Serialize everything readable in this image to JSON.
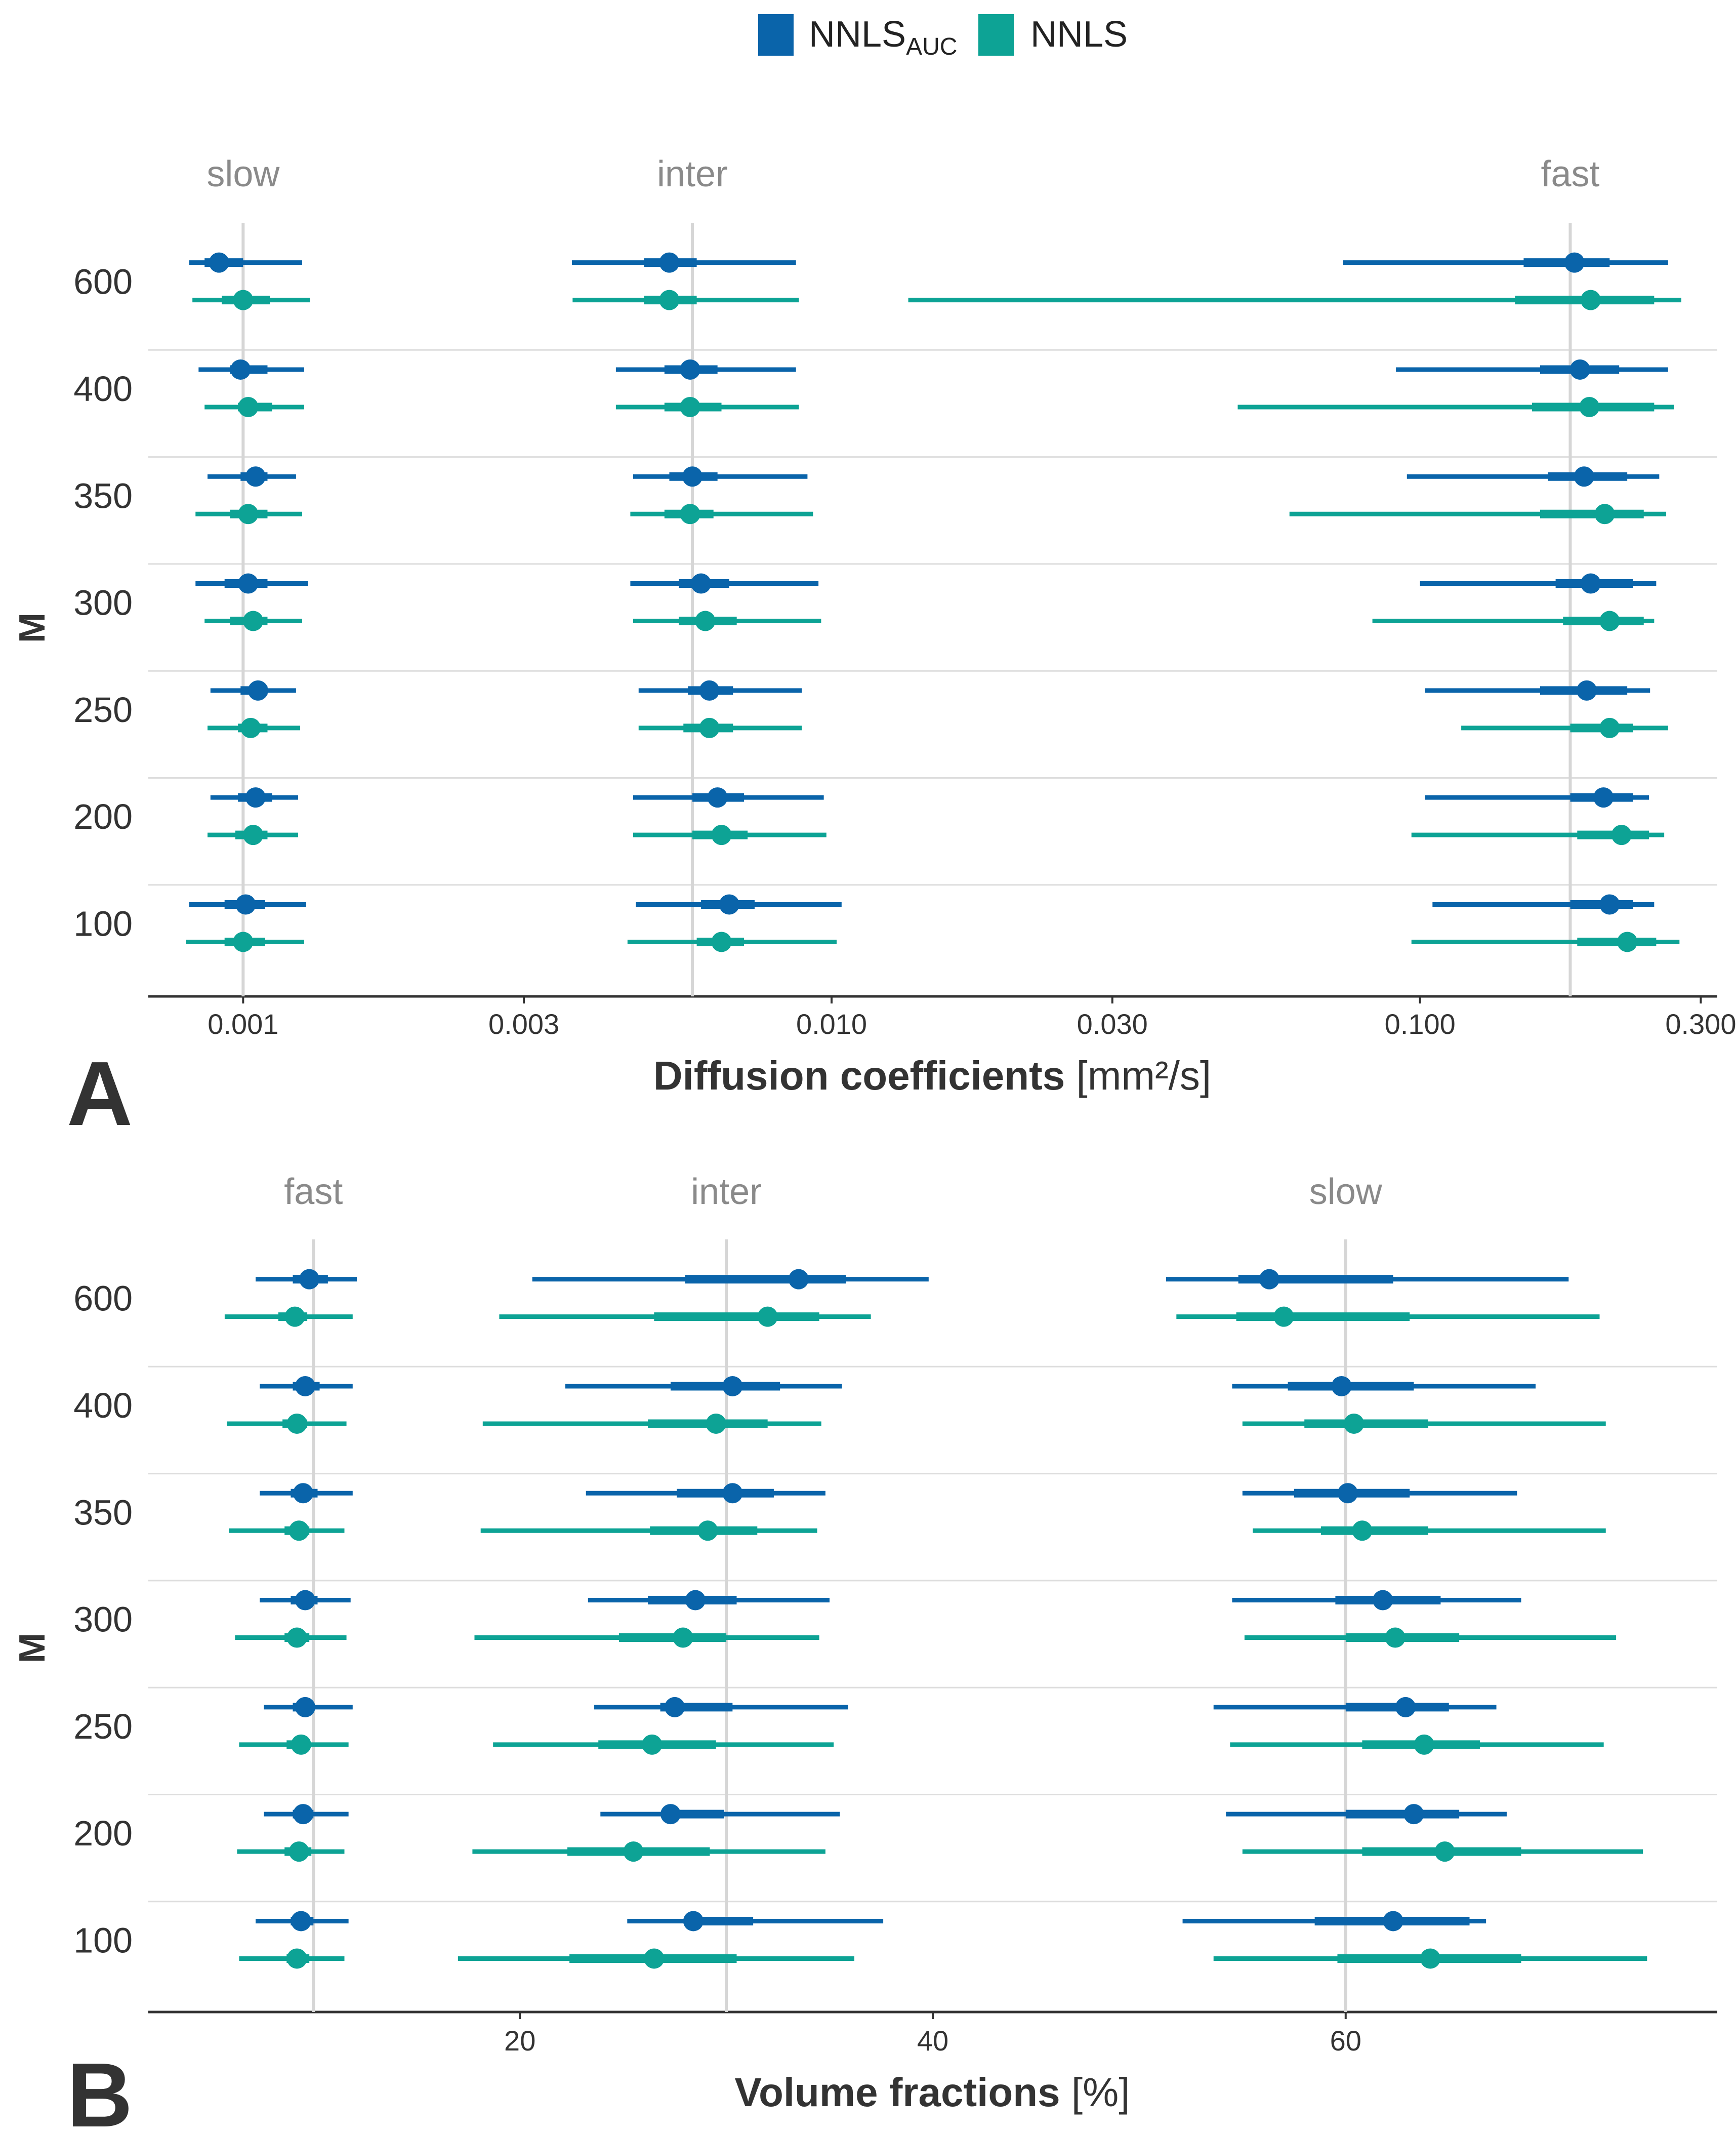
{
  "legend": {
    "items": [
      {
        "label": "NNLS",
        "subscript": "AUC",
        "color": "#0a64aa"
      },
      {
        "label": "NNLS",
        "subscript": "",
        "color": "#0da395"
      }
    ]
  },
  "chart_data": [
    {
      "panel": "A",
      "type": "forest",
      "xlabel_bold": "Diffusion coefficients",
      "xlabel_unit": "[mm²/s]",
      "ylabel": "M",
      "xscale": "log",
      "xlim": [
        0.00069,
        0.32
      ],
      "xticks": [
        0.001,
        0.003,
        0.01,
        0.03,
        0.1,
        0.3
      ],
      "xtick_labels": [
        "0.001",
        "0.003",
        "0.010",
        "0.030",
        "0.100",
        "0.300"
      ],
      "categories": [
        "600",
        "400",
        "350",
        "300",
        "250",
        "200",
        "100"
      ],
      "facets": [
        {
          "label": "slow",
          "ref": 0.001
        },
        {
          "label": "inter",
          "ref": 0.0058
        },
        {
          "label": "fast",
          "ref": 0.18
        }
      ],
      "series": [
        {
          "name": "NNLS_AUC",
          "color": "#0a64aa",
          "groups": [
            [
              [
                0.00081,
                0.00086,
                0.00091,
                0.001,
                0.00126
              ],
              [
                0.00082,
                0.00092,
                0.001,
                0.00111,
                0.0013
              ],
              [
                0.00084,
                0.00095,
                0.00099,
                0.0011,
                0.00127
              ],
              [
                0.00086,
                0.00098,
                0.00102,
                0.00112,
                0.00127
              ],
              [
                0.00087,
                0.00099,
                0.00105,
                0.0011,
                0.00123
              ],
              [
                0.00083,
                0.00095,
                0.00102,
                0.0011,
                0.00126
              ],
              [
                0.00083,
                0.00093,
                0.00102,
                0.0011,
                0.00129
              ],
              [
                0.00086,
                0.00095,
                0.00104,
                0.0011,
                0.00126
              ],
              [
                0.00088,
                0.00099,
                0.00106,
                0.0011,
                0.00123
              ],
              [
                0.00087,
                0.00098,
                0.00103,
                0.0011,
                0.00125
              ],
              [
                0.00088,
                0.00098,
                0.00105,
                0.00112,
                0.00124
              ],
              [
                0.00087,
                0.00097,
                0.00104,
                0.0011,
                0.00124
              ],
              [
                0.00081,
                0.00093,
                0.00101,
                0.00109,
                0.00128
              ],
              [
                0.0008,
                0.00093,
                0.001,
                0.00109,
                0.00127
              ]
            ],
            [
              [
                0.00362,
                0.0048,
                0.0053,
                0.0059,
                0.0087
              ],
              [
                0.00363,
                0.0048,
                0.0053,
                0.0059,
                0.0088
              ],
              [
                0.0043,
                0.0052,
                0.00575,
                0.0064,
                0.0087
              ],
              [
                0.0043,
                0.0052,
                0.00575,
                0.0065,
                0.0088
              ],
              [
                0.0046,
                0.0053,
                0.0058,
                0.0064,
                0.0091
              ],
              [
                0.00455,
                0.0052,
                0.00575,
                0.0063,
                0.0093
              ],
              [
                0.00455,
                0.0055,
                0.006,
                0.0067,
                0.0095
              ],
              [
                0.0046,
                0.0055,
                0.0061,
                0.0069,
                0.0096
              ],
              [
                0.0047,
                0.0057,
                0.0062,
                0.0068,
                0.0089
              ],
              [
                0.0047,
                0.0056,
                0.0062,
                0.0068,
                0.0089
              ],
              [
                0.0046,
                0.0058,
                0.0064,
                0.0071,
                0.0097
              ],
              [
                0.0046,
                0.0058,
                0.0065,
                0.0072,
                0.0098
              ],
              [
                0.00465,
                0.006,
                0.0067,
                0.0074,
                0.0104
              ],
              [
                0.0045,
                0.0059,
                0.0065,
                0.0071,
                0.0102
              ]
            ],
            [
              [
                0.074,
                0.15,
                0.183,
                0.21,
                0.264
              ],
              [
                0.0135,
                0.145,
                0.195,
                0.25,
                0.278
              ],
              [
                0.091,
                0.16,
                0.187,
                0.218,
                0.264
              ],
              [
                0.049,
                0.155,
                0.194,
                0.25,
                0.27
              ],
              [
                0.095,
                0.165,
                0.19,
                0.225,
                0.255
              ],
              [
                0.06,
                0.16,
                0.206,
                0.24,
                0.262
              ],
              [
                0.1,
                0.17,
                0.195,
                0.23,
                0.252
              ],
              [
                0.083,
                0.175,
                0.21,
                0.24,
                0.25
              ],
              [
                0.102,
                0.16,
                0.192,
                0.225,
                0.246
              ],
              [
                0.1175,
                0.18,
                0.21,
                0.23,
                0.264
              ],
              [
                0.102,
                0.18,
                0.205,
                0.23,
                0.245
              ],
              [
                0.0967,
                0.185,
                0.22,
                0.245,
                0.26
              ],
              [
                0.105,
                0.18,
                0.21,
                0.23,
                0.25
              ],
              [
                0.0967,
                0.185,
                0.225,
                0.252,
                0.276
              ]
            ]
          ]
        },
        {
          "name": "NNLS",
          "color": "#0da395",
          "groups": []
        }
      ]
    },
    {
      "panel": "B",
      "type": "forest",
      "xlabel_bold": "Volume fractions",
      "xlabel_unit": "[%]",
      "ylabel": "M",
      "xscale": "linear",
      "xlim": [
        2,
        78
      ],
      "xticks": [
        20,
        40,
        60
      ],
      "xtick_labels": [
        "20",
        "40",
        "60"
      ],
      "categories": [
        "600",
        "400",
        "350",
        "300",
        "250",
        "200",
        "100"
      ],
      "facets": [
        {
          "label": "fast",
          "ref": 10
        },
        {
          "label": "inter",
          "ref": 30
        },
        {
          "label": "slow",
          "ref": 60
        }
      ],
      "series": [
        {
          "name": "NNLS_AUC",
          "color": "#0a64aa",
          "groups": [
            [
              [
                7.2,
                9.0,
                9.8,
                10.7,
                12.1
              ],
              [
                5.7,
                8.3,
                9.1,
                9.7,
                11.9
              ],
              [
                7.4,
                9.0,
                9.6,
                10.3,
                11.9
              ],
              [
                5.8,
                8.5,
                9.2,
                9.7,
                11.6
              ],
              [
                7.4,
                8.9,
                9.5,
                10.2,
                11.9
              ],
              [
                5.9,
                8.6,
                9.3,
                9.8,
                11.5
              ],
              [
                7.4,
                8.9,
                9.6,
                10.2,
                11.8
              ],
              [
                6.2,
                8.6,
                9.2,
                9.8,
                11.6
              ],
              [
                7.6,
                9.0,
                9.6,
                10.0,
                11.9
              ],
              [
                6.4,
                8.7,
                9.4,
                9.8,
                11.7
              ],
              [
                7.6,
                9.0,
                9.5,
                10.0,
                11.7
              ],
              [
                6.3,
                8.6,
                9.3,
                9.9,
                11.5
              ],
              [
                7.2,
                8.9,
                9.4,
                10.0,
                11.7
              ],
              [
                6.4,
                8.7,
                9.2,
                9.8,
                11.5
              ]
            ],
            [
              [
                20.6,
                28.0,
                33.5,
                35.8,
                39.8
              ],
              [
                19.0,
                26.5,
                32.0,
                34.5,
                37.0
              ],
              [
                22.2,
                27.3,
                30.3,
                32.6,
                35.6
              ],
              [
                18.2,
                26.2,
                29.5,
                32.0,
                34.6
              ],
              [
                23.2,
                27.6,
                30.3,
                32.3,
                34.8
              ],
              [
                18.1,
                26.3,
                29.1,
                31.5,
                34.4
              ],
              [
                23.3,
                26.2,
                28.5,
                30.5,
                35.0
              ],
              [
                17.8,
                24.8,
                27.9,
                30.0,
                34.5
              ],
              [
                23.6,
                26.8,
                27.5,
                30.3,
                35.9
              ],
              [
                18.7,
                23.8,
                26.4,
                29.5,
                35.2
              ],
              [
                23.9,
                27.0,
                27.3,
                29.9,
                35.5
              ],
              [
                17.7,
                22.3,
                25.5,
                29.2,
                34.8
              ],
              [
                25.2,
                28.4,
                28.4,
                31.3,
                37.6
              ],
              [
                17.0,
                22.4,
                26.5,
                30.5,
                36.2
              ]
            ],
            [
              [
                51.3,
                54.8,
                56.3,
                62.3,
                70.8
              ],
              [
                51.8,
                54.7,
                57.0,
                63.1,
                72.3
              ],
              [
                54.5,
                57.2,
                59.8,
                63.3,
                69.2
              ],
              [
                55.0,
                58.0,
                60.4,
                64.0,
                72.6
              ],
              [
                55.0,
                57.5,
                60.1,
                63.1,
                68.3
              ],
              [
                55.5,
                58.8,
                60.8,
                64.0,
                72.6
              ],
              [
                54.5,
                59.5,
                61.8,
                64.6,
                68.5
              ],
              [
                55.1,
                60.0,
                62.4,
                65.5,
                73.1
              ],
              [
                53.6,
                60.0,
                62.9,
                65.0,
                67.3
              ],
              [
                54.4,
                60.8,
                63.8,
                66.5,
                72.5
              ],
              [
                54.2,
                60.0,
                63.3,
                65.5,
                67.8
              ],
              [
                55.0,
                60.8,
                64.8,
                68.5,
                74.4
              ],
              [
                52.1,
                58.5,
                62.3,
                66.0,
                66.8
              ],
              [
                53.6,
                59.6,
                64.1,
                68.5,
                74.6
              ]
            ]
          ]
        },
        {
          "name": "NNLS",
          "color": "#0da395",
          "groups": []
        }
      ]
    }
  ]
}
